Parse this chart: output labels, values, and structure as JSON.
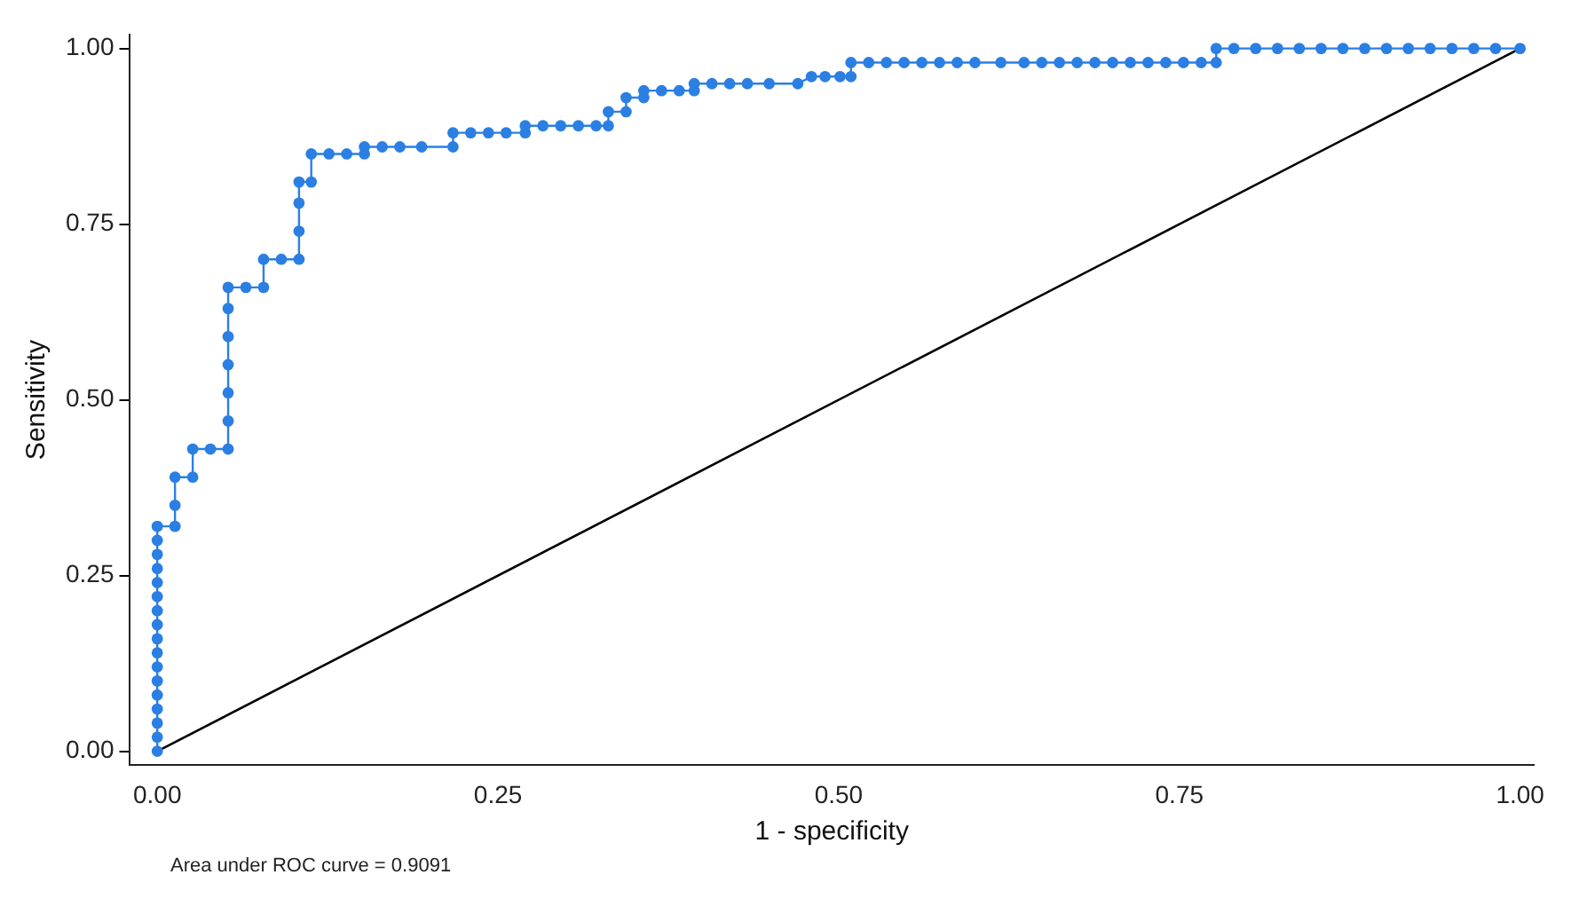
{
  "chart_data": {
    "type": "line",
    "xlabel": "1 - specificity",
    "ylabel": "Sensitivity",
    "annotations": [
      "Area under ROC curve = 0.9091"
    ],
    "xlim": [
      -0.02,
      1.01
    ],
    "ylim": [
      -0.02,
      1.02
    ],
    "xticks": [
      {
        "value": 0,
        "label": "0.00"
      },
      {
        "value": 0.25,
        "label": "0.25"
      },
      {
        "value": 0.5,
        "label": "0.50"
      },
      {
        "value": 0.75,
        "label": "0.75"
      },
      {
        "value": 1,
        "label": "1.00"
      }
    ],
    "yticks": [
      {
        "value": 0,
        "label": "0.00"
      },
      {
        "value": 0.25,
        "label": "0.25"
      },
      {
        "value": 0.5,
        "label": "0.50"
      },
      {
        "value": 0.75,
        "label": "0.75"
      },
      {
        "value": 1,
        "label": "1.00"
      }
    ],
    "grid": false,
    "legend": false,
    "marker": "circle",
    "line_style": "solid",
    "series": [
      {
        "color": "#2b7fe3",
        "x": [
          0,
          0,
          0,
          0,
          0,
          0,
          0,
          0,
          0,
          0,
          0,
          0,
          0,
          0,
          0,
          0,
          0,
          0.013,
          0.013,
          0.013,
          0.026,
          0.026,
          0.039,
          0.052,
          0.052,
          0.052,
          0.052,
          0.052,
          0.052,
          0.052,
          0.065,
          0.078,
          0.078,
          0.091,
          0.104,
          0.104,
          0.104,
          0.104,
          0.113,
          0.113,
          0.126,
          0.139,
          0.152,
          0.152,
          0.165,
          0.178,
          0.194,
          0.217,
          0.217,
          0.23,
          0.243,
          0.256,
          0.27,
          0.27,
          0.283,
          0.296,
          0.309,
          0.322,
          0.331,
          0.331,
          0.344,
          0.344,
          0.357,
          0.357,
          0.37,
          0.383,
          0.394,
          0.394,
          0.407,
          0.42,
          0.433,
          0.449,
          0.47,
          0.48,
          0.49,
          0.501,
          0.509,
          0.509,
          0.522,
          0.535,
          0.548,
          0.561,
          0.574,
          0.587,
          0.6,
          0.619,
          0.636,
          0.649,
          0.662,
          0.675,
          0.688,
          0.701,
          0.714,
          0.727,
          0.74,
          0.753,
          0.766,
          0.777,
          0.777,
          0.79,
          0.806,
          0.822,
          0.838,
          0.854,
          0.87,
          0.886,
          0.902,
          0.918,
          0.934,
          0.95,
          0.966,
          0.982,
          1
        ],
        "values": [
          0,
          0.02,
          0.04,
          0.06,
          0.08,
          0.1,
          0.12,
          0.14,
          0.16,
          0.18,
          0.2,
          0.22,
          0.24,
          0.26,
          0.28,
          0.3,
          0.32,
          0.32,
          0.35,
          0.39,
          0.39,
          0.43,
          0.43,
          0.43,
          0.47,
          0.51,
          0.55,
          0.59,
          0.63,
          0.66,
          0.66,
          0.66,
          0.7,
          0.7,
          0.7,
          0.74,
          0.78,
          0.81,
          0.81,
          0.85,
          0.85,
          0.85,
          0.85,
          0.86,
          0.86,
          0.86,
          0.86,
          0.86,
          0.88,
          0.88,
          0.88,
          0.88,
          0.88,
          0.89,
          0.89,
          0.89,
          0.89,
          0.89,
          0.89,
          0.91,
          0.91,
          0.93,
          0.93,
          0.94,
          0.94,
          0.94,
          0.94,
          0.95,
          0.95,
          0.95,
          0.95,
          0.95,
          0.95,
          0.96,
          0.96,
          0.96,
          0.96,
          0.98,
          0.98,
          0.98,
          0.98,
          0.98,
          0.98,
          0.98,
          0.98,
          0.98,
          0.98,
          0.98,
          0.98,
          0.98,
          0.98,
          0.98,
          0.98,
          0.98,
          0.98,
          0.98,
          0.98,
          0.98,
          1,
          1,
          1,
          1,
          1,
          1,
          1,
          1,
          1,
          1,
          1,
          1,
          1,
          1,
          1
        ]
      },
      {
        "color": "#000000",
        "marker": "none",
        "x": [
          0,
          1
        ],
        "values": [
          0,
          1
        ]
      }
    ]
  }
}
